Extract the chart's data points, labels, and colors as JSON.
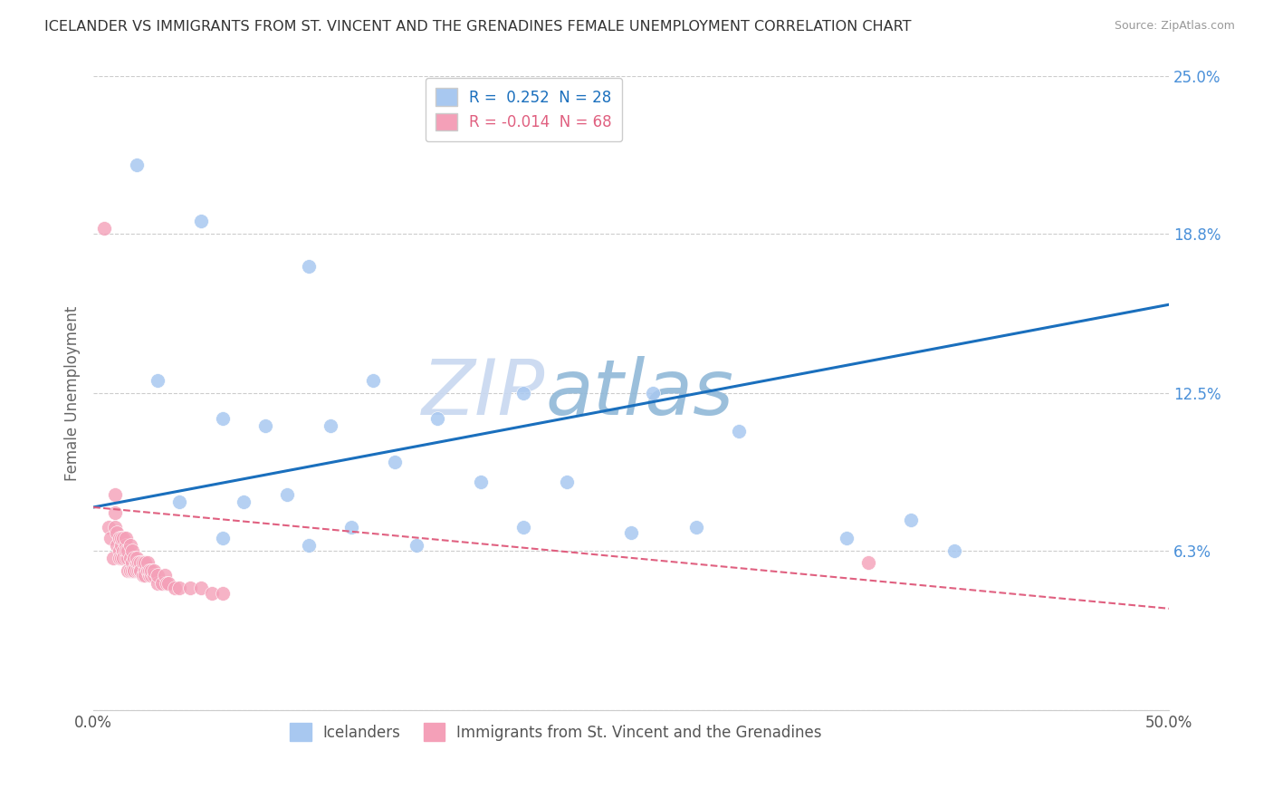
{
  "title": "ICELANDER VS IMMIGRANTS FROM ST. VINCENT AND THE GRENADINES FEMALE UNEMPLOYMENT CORRELATION CHART",
  "source": "Source: ZipAtlas.com",
  "ylabel": "Female Unemployment",
  "xlim": [
    0.0,
    0.5
  ],
  "ylim": [
    0.0,
    0.25
  ],
  "xticks": [
    0.0,
    0.1,
    0.2,
    0.3,
    0.4,
    0.5
  ],
  "xticklabels": [
    "0.0%",
    "",
    "",
    "",
    "",
    "50.0%"
  ],
  "yticks_right": [
    0.0,
    0.063,
    0.125,
    0.188,
    0.25
  ],
  "ytick_labels_right": [
    "",
    "6.3%",
    "12.5%",
    "18.8%",
    "25.0%"
  ],
  "blue_R": 0.252,
  "blue_N": 28,
  "pink_R": -0.014,
  "pink_N": 68,
  "blue_color": "#a8c8f0",
  "pink_color": "#f4a0b8",
  "blue_line_color": "#1a6fbd",
  "pink_line_color": "#e06080",
  "watermark_zip": "ZIP",
  "watermark_atlas": "atlas",
  "watermark_color_zip": "#c8d8f0",
  "watermark_color_atlas": "#90b8d8",
  "legend_label_blue": "Icelanders",
  "legend_label_pink": "Immigrants from St. Vincent and the Grenadines",
  "blue_x": [
    0.02,
    0.05,
    0.1,
    0.13,
    0.2,
    0.26,
    0.03,
    0.06,
    0.08,
    0.11,
    0.16,
    0.18,
    0.22,
    0.3,
    0.04,
    0.07,
    0.09,
    0.14,
    0.25,
    0.38,
    0.12,
    0.2,
    0.28,
    0.35,
    0.06,
    0.1,
    0.15,
    0.4
  ],
  "blue_y": [
    0.215,
    0.193,
    0.175,
    0.13,
    0.125,
    0.125,
    0.13,
    0.115,
    0.112,
    0.112,
    0.115,
    0.09,
    0.09,
    0.11,
    0.082,
    0.082,
    0.085,
    0.098,
    0.07,
    0.075,
    0.072,
    0.072,
    0.072,
    0.068,
    0.068,
    0.065,
    0.065,
    0.063
  ],
  "pink_x": [
    0.005,
    0.007,
    0.008,
    0.009,
    0.01,
    0.01,
    0.01,
    0.011,
    0.011,
    0.012,
    0.012,
    0.012,
    0.013,
    0.013,
    0.013,
    0.014,
    0.014,
    0.014,
    0.015,
    0.015,
    0.015,
    0.015,
    0.016,
    0.016,
    0.016,
    0.017,
    0.017,
    0.017,
    0.018,
    0.018,
    0.018,
    0.019,
    0.019,
    0.019,
    0.02,
    0.02,
    0.02,
    0.021,
    0.021,
    0.022,
    0.022,
    0.022,
    0.023,
    0.023,
    0.024,
    0.024,
    0.024,
    0.025,
    0.025,
    0.026,
    0.026,
    0.027,
    0.027,
    0.028,
    0.028,
    0.03,
    0.03,
    0.032,
    0.033,
    0.034,
    0.035,
    0.038,
    0.04,
    0.045,
    0.05,
    0.055,
    0.06,
    0.36
  ],
  "pink_y": [
    0.19,
    0.072,
    0.068,
    0.06,
    0.085,
    0.078,
    0.072,
    0.07,
    0.065,
    0.068,
    0.063,
    0.06,
    0.065,
    0.06,
    0.068,
    0.063,
    0.068,
    0.06,
    0.06,
    0.065,
    0.068,
    0.063,
    0.06,
    0.063,
    0.055,
    0.06,
    0.065,
    0.055,
    0.058,
    0.063,
    0.055,
    0.055,
    0.06,
    0.055,
    0.058,
    0.055,
    0.06,
    0.055,
    0.058,
    0.055,
    0.058,
    0.055,
    0.053,
    0.058,
    0.055,
    0.058,
    0.053,
    0.055,
    0.058,
    0.053,
    0.055,
    0.053,
    0.055,
    0.053,
    0.055,
    0.05,
    0.053,
    0.05,
    0.053,
    0.05,
    0.05,
    0.048,
    0.048,
    0.048,
    0.048,
    0.046,
    0.046,
    0.058
  ]
}
